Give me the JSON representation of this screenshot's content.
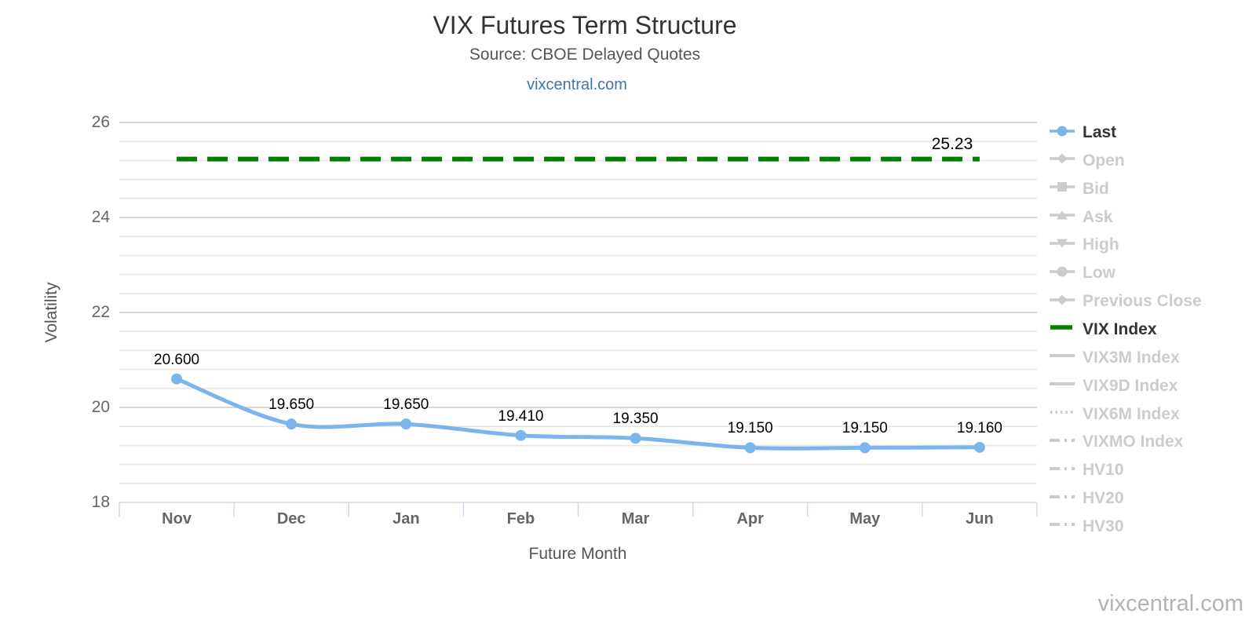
{
  "header": {
    "title": "VIX Futures Term Structure",
    "subtitle": "Source: CBOE Delayed Quotes",
    "link": "vixcentral.com"
  },
  "watermark": "vixcentral.com",
  "chart_data": {
    "type": "line",
    "title": "VIX Futures Term Structure",
    "subtitle": "Source: CBOE Delayed Quotes",
    "xlabel": "Future Month",
    "ylabel": "Volatility",
    "categories": [
      "Nov",
      "Dec",
      "Jan",
      "Feb",
      "Mar",
      "Apr",
      "May",
      "Jun"
    ],
    "ylim": [
      18,
      26
    ],
    "y_major_ticks": [
      18,
      20,
      22,
      24,
      26
    ],
    "y_minor_interval": 0.4,
    "grid": true,
    "legend_position": "right",
    "series": [
      {
        "name": "Last",
        "type": "spline",
        "marker": "circle",
        "color": "#7cb5ec",
        "values": [
          20.6,
          19.65,
          19.65,
          19.41,
          19.35,
          19.15,
          19.15,
          19.16
        ],
        "labels": [
          "20.600",
          "19.650",
          "19.650",
          "19.410",
          "19.350",
          "19.150",
          "19.150",
          "19.160"
        ]
      },
      {
        "name": "VIX Index",
        "type": "dashed-horizontal-line",
        "color": "#008000",
        "value": 25.23,
        "label": "25.23"
      }
    ],
    "legend": [
      {
        "label": "Last",
        "marker": "circle",
        "active": true,
        "color": "#7cb5ec"
      },
      {
        "label": "Open",
        "marker": "diamond",
        "active": false
      },
      {
        "label": "Bid",
        "marker": "square",
        "active": false
      },
      {
        "label": "Ask",
        "marker": "triangle-up",
        "active": false
      },
      {
        "label": "High",
        "marker": "triangle-down",
        "active": false
      },
      {
        "label": "Low",
        "marker": "circle",
        "active": false
      },
      {
        "label": "Previous Close",
        "marker": "diamond",
        "active": false
      },
      {
        "label": "VIX Index",
        "marker": "dash",
        "active": true,
        "color": "#008000"
      },
      {
        "label": "VIX3M Index",
        "marker": "line",
        "active": false
      },
      {
        "label": "VIX9D Index",
        "marker": "line",
        "active": false
      },
      {
        "label": "VIX6M Index",
        "marker": "dotted",
        "active": false
      },
      {
        "label": "VIXMO Index",
        "marker": "dash-dot",
        "active": false
      },
      {
        "label": "HV10",
        "marker": "dash-dot",
        "active": false
      },
      {
        "label": "HV20",
        "marker": "dash-dot",
        "active": false
      },
      {
        "label": "HV30",
        "marker": "dash-dot",
        "active": false
      }
    ],
    "colors": {
      "inactive": "#cccccc",
      "active_text": "#333333",
      "axis_line": "#ccd6eb",
      "grid_major": "#d2d2d2",
      "grid_minor": "#e6e6e6",
      "axis_label": "#666666",
      "title": "#333333",
      "subtitle": "#555555",
      "link": "#4572a7",
      "watermark": "#b3b3b3"
    }
  }
}
